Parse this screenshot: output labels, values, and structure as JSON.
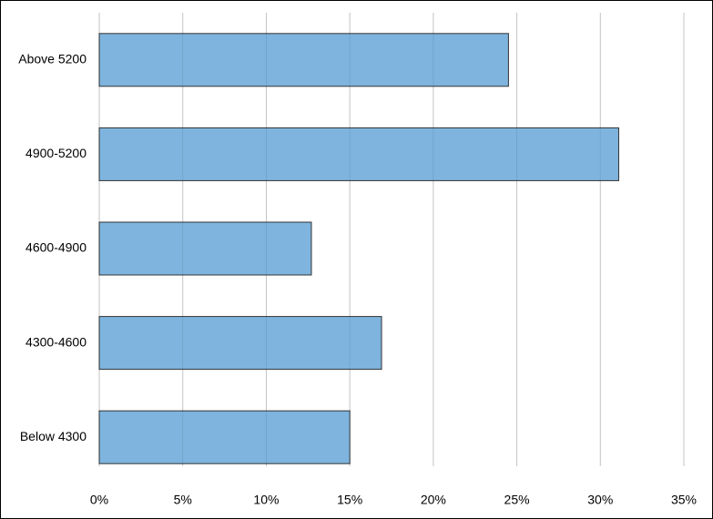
{
  "chart_data": {
    "type": "hbar",
    "categories": [
      "Above 5200",
      "4900-5200",
      "4600-4900",
      "4300-4600",
      "Below 4300"
    ],
    "values": [
      24.5,
      31.1,
      12.7,
      16.9,
      15.0
    ],
    "color": "#7eb4de",
    "xlim": [
      0,
      35
    ],
    "xticks": [
      {
        "value": 0,
        "label": "0%"
      },
      {
        "value": 5,
        "label": "5%"
      },
      {
        "value": 10,
        "label": "10%"
      },
      {
        "value": 15,
        "label": "15%"
      },
      {
        "value": 20,
        "label": "20%"
      },
      {
        "value": 25,
        "label": "25%"
      },
      {
        "value": 30,
        "label": "30%"
      },
      {
        "value": 35,
        "label": "35%"
      }
    ],
    "grid": true
  }
}
